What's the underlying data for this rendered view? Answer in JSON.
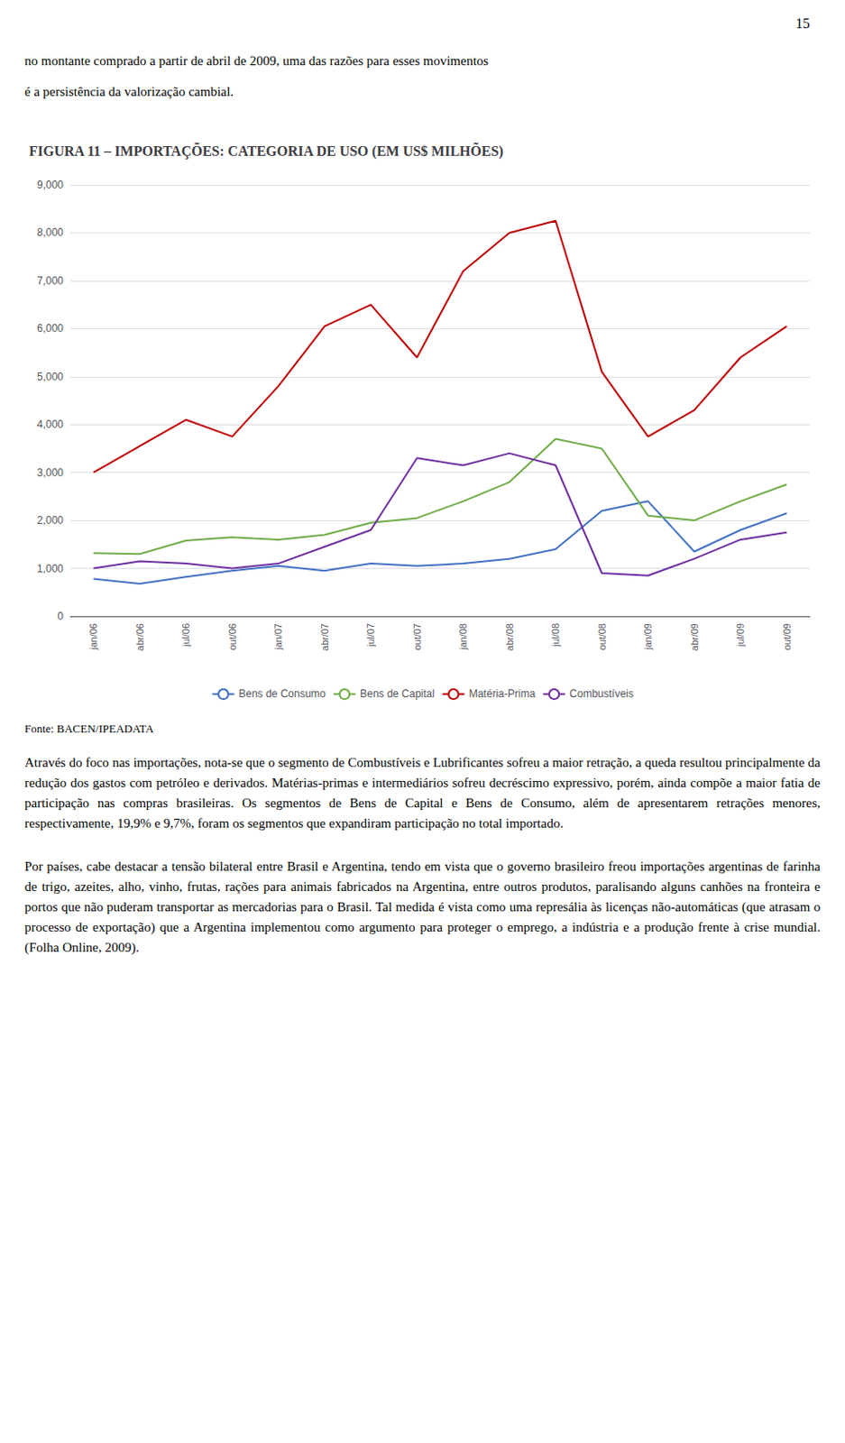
{
  "page_number": "15",
  "header": [
    "no montante comprado a partir de abril de 2009, uma das razões para esses movimentos",
    "é a persistência da valorização cambial."
  ],
  "source": "Fonte: BACEN/IPEADATA",
  "body": [
    "Através do foco nas importações, nota-se que o segmento de Combustíveis e Lubrificantes sofreu a maior retração, a queda resultou principalmente da redução dos gastos com petróleo e derivados. Matérias-primas e intermediários sofreu decréscimo expressivo, porém, ainda compõe a maior fatia de participação nas compras brasileiras. Os segmentos de Bens de Capital e Bens de Consumo, além de apresentarem retrações menores, respectivamente, 19,9% e 9,7%, foram os segmentos que expandiram participação no total importado.",
    "Por países, cabe destacar a tensão bilateral entre Brasil e Argentina, tendo em vista que o governo brasileiro freou importações argentinas de farinha de trigo, azeites, alho, vinho, frutas, rações para animais fabricados na Argentina, entre outros produtos, paralisando alguns canhões na fronteira e portos que não puderam transportar as mercadorias para o Brasil. Tal medida é vista como uma represália às licenças não-automáticas (que atrasam o processo de exportação) que a Argentina implementou como argumento para proteger o emprego, a indústria e a produção frente à crise mundial.  (Folha Online, 2009)."
  ],
  "chart_data": {
    "type": "line",
    "title": "FIGURA 11 – IMPORTAÇÕES: CATEGORIA DE USO (EM US$ MILHÕES)",
    "categories": [
      "jan/06",
      "abr/06",
      "jul/06",
      "out/06",
      "jan/07",
      "abr/07",
      "jul/07",
      "out/07",
      "jan/08",
      "abr/08",
      "jul/08",
      "out/08",
      "jan/09",
      "abr/09",
      "jul/09",
      "out/09"
    ],
    "series": [
      {
        "name": "Bens de Consumo",
        "color": "#4472C4",
        "values": [
          780,
          680,
          820,
          950,
          1050,
          950,
          1100,
          1050,
          1100,
          1200,
          1400,
          2200,
          2400,
          1350,
          1800,
          2150
        ]
      },
      {
        "name": "Bens de Capital",
        "color": "#70AD47",
        "values": [
          1320,
          1300,
          1580,
          1650,
          1600,
          1700,
          1950,
          2050,
          2400,
          2800,
          3700,
          3500,
          2100,
          2000,
          2400,
          2750
        ]
      },
      {
        "name": "Matéria-Prima",
        "color": "#C00000",
        "values": [
          3000,
          3550,
          4100,
          3750,
          4800,
          6050,
          6500,
          5400,
          7200,
          8000,
          8250,
          5100,
          3750,
          4300,
          5400,
          6050
        ]
      },
      {
        "name": "Combustíveis",
        "color": "#7030A0",
        "values": [
          1000,
          1150,
          1100,
          1000,
          1100,
          1450,
          1800,
          3300,
          3150,
          3400,
          3150,
          900,
          850,
          1200,
          1600,
          1750
        ]
      }
    ],
    "ylim": [
      0,
      9000
    ],
    "yticks": [
      0,
      1000,
      2000,
      3000,
      4000,
      5000,
      6000,
      7000,
      8000,
      9000
    ],
    "grid": true,
    "legend": "bottom"
  }
}
